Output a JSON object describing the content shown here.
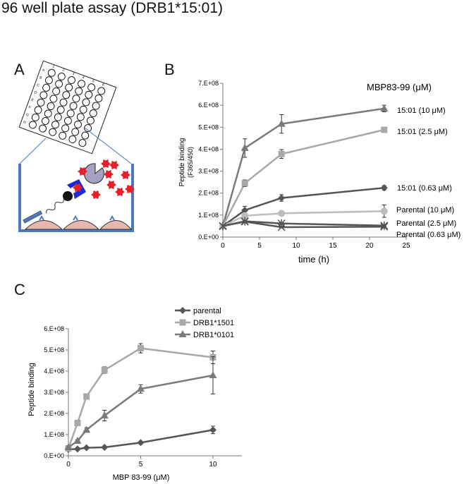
{
  "figure_title": "96 well plate assay (DRB1*15:01)",
  "panel_labels": {
    "a": "A",
    "b": "B",
    "c": "C"
  },
  "colors": {
    "dark": "#555555",
    "mid": "#7a7a7a",
    "light": "#a8a8a8",
    "lighter": "#bdbdbd",
    "plate_blue": "#4a7ab8",
    "cell_pink": "#e6b8b0",
    "peptide_red": "#e8202a",
    "receptor_blue": "#1a2ad8",
    "tcr_purple": "#a8a0c0"
  },
  "illustration": {
    "plate_row_letters": [
      "A",
      "B",
      "C",
      "D",
      "E",
      "F",
      "G",
      "H"
    ],
    "plate_col_numbers": [
      "1",
      "2",
      "3",
      "4",
      "5",
      "6"
    ]
  },
  "chart_data": [
    {
      "type": "line",
      "panel": "B",
      "xlabel": "time (h)",
      "ylabel": "Peptide binding",
      "ylabel2": "(F365/450)",
      "legend_title": "MBP83-99 (μM)",
      "xlim": [
        0,
        25
      ],
      "ylim": [
        0,
        700000000
      ],
      "xticks": [
        "0",
        "5",
        "10",
        "15",
        "20",
        "25"
      ],
      "yticks": [
        "0.E+00",
        "1.E+08",
        "2.E+08",
        "3.E+08",
        "4.E+08",
        "5.E+08",
        "6.E+08",
        "7.E+08"
      ],
      "x": [
        0,
        3,
        8,
        22
      ],
      "series": [
        {
          "name": "15:01 (10 μM)",
          "marker": "triangle",
          "shade": "mid",
          "values": [
            50000000,
            405000000,
            515000000,
            585000000
          ],
          "errors": [
            0,
            42000000,
            42000000,
            15000000
          ]
        },
        {
          "name": "15:01 (2.5 μM)",
          "marker": "square",
          "shade": "light",
          "values": [
            50000000,
            245000000,
            378000000,
            488000000
          ],
          "errors": [
            0,
            15000000,
            20000000,
            8000000
          ]
        },
        {
          "name": "15:01 (0.63 μM)",
          "marker": "diamond",
          "shade": "dark",
          "values": [
            50000000,
            122000000,
            178000000,
            224000000
          ],
          "errors": [
            0,
            18000000,
            15000000,
            10000000
          ]
        },
        {
          "name": "Parental (10 μM)",
          "marker": "circle",
          "shade": "lighter",
          "values": [
            50000000,
            97000000,
            108000000,
            118000000
          ],
          "errors": [
            0,
            10000000,
            8000000,
            28000000
          ]
        },
        {
          "name": "Parental (2.5 μM)",
          "marker": "star",
          "shade": "dark",
          "values": [
            50000000,
            72000000,
            62000000,
            52000000
          ],
          "errors": [
            0,
            5000000,
            4000000,
            4000000
          ]
        },
        {
          "name": "Parental (0.63 μM)",
          "marker": "x",
          "shade": "dark",
          "values": [
            50000000,
            70000000,
            45000000,
            47000000
          ],
          "errors": [
            0,
            5000000,
            4000000,
            4000000
          ]
        }
      ]
    },
    {
      "type": "line",
      "panel": "C",
      "xlabel": "MBP 83-99 (μM)",
      "ylabel": "Peptide binding",
      "xlim": [
        0,
        12
      ],
      "ylim": [
        0,
        600000000
      ],
      "xticks": [
        "0",
        "5",
        "10"
      ],
      "yticks": [
        "0.E+00",
        "1.E+08",
        "2.E+08",
        "3.E+08",
        "4.E+08",
        "5.E+08",
        "6.E+08"
      ],
      "legend_position": "top",
      "series": [
        {
          "name": "parental",
          "marker": "diamond",
          "shade": "dark",
          "x": [
            0,
            0.63,
            1.25,
            2.5,
            5,
            10
          ],
          "values": [
            30000000,
            32000000,
            38000000,
            40000000,
            62000000,
            122000000
          ],
          "errors": [
            0,
            3000000,
            3000000,
            3000000,
            5000000,
            18000000
          ]
        },
        {
          "name": "DRB1*1501",
          "marker": "square",
          "shade": "light",
          "x": [
            0,
            0.63,
            1.25,
            2.5,
            5,
            10
          ],
          "values": [
            35000000,
            155000000,
            280000000,
            405000000,
            508000000,
            465000000
          ],
          "errors": [
            0,
            5000000,
            8000000,
            15000000,
            22000000,
            30000000
          ]
        },
        {
          "name": "DRB1*0101",
          "marker": "triangle",
          "shade": "mid",
          "x": [
            0,
            0.63,
            1.25,
            2.5,
            5,
            10
          ],
          "values": [
            40000000,
            70000000,
            122000000,
            190000000,
            316000000,
            380000000
          ],
          "errors": [
            0,
            5000000,
            10000000,
            25000000,
            20000000,
            88000000
          ]
        }
      ]
    }
  ]
}
